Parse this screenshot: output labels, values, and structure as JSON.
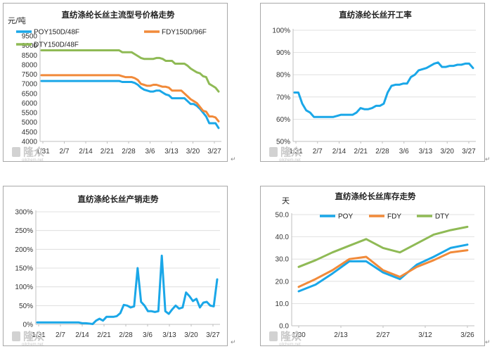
{
  "colors": {
    "poy": "#1aa7e8",
    "fdy": "#f18a3a",
    "dty": "#8fba55",
    "grid": "#d9d9d9",
    "axis": "#bfbfbf"
  },
  "watermark": {
    "brand": "隆众",
    "site": "oilchem.net",
    "icon": "longzhong-logo-icon"
  },
  "cursor_mark": "↵",
  "chart_data": [
    {
      "id": "price",
      "type": "line",
      "title": "直纺涤纶长丝主流型号价格走势",
      "ylabel": "元/吨",
      "ylim": [
        4000,
        9500
      ],
      "yticks": [
        "4000",
        "4500",
        "5000",
        "5500",
        "6000",
        "6500",
        "7000",
        "7500",
        "8000",
        "8500",
        "9000",
        "9500"
      ],
      "ytick_values": [
        4000,
        4500,
        5000,
        5500,
        6000,
        6500,
        7000,
        7500,
        8000,
        8500,
        9000,
        9500
      ],
      "xticks": [
        "1/31",
        "2/7",
        "2/14",
        "2/21",
        "2/28",
        "3/6",
        "3/13",
        "3/20",
        "3/27"
      ],
      "legend_position": "top-left",
      "series": [
        {
          "name": "POY150D/48F",
          "color_key": "poy",
          "values": [
            7150,
            7150,
            7150,
            7150,
            7150,
            7150,
            7150,
            7150,
            7150,
            7150,
            7150,
            7150,
            7150,
            7150,
            7150,
            7150,
            7150,
            7150,
            7150,
            7150,
            7150,
            7150,
            7150,
            7150,
            7150,
            7150,
            7100,
            7100,
            7100,
            7100,
            7050,
            6950,
            6800,
            6700,
            6650,
            6600,
            6600,
            6650,
            6650,
            6550,
            6450,
            6400,
            6250,
            6250,
            6250,
            6250,
            6250,
            6100,
            5950,
            5950,
            5850,
            5700,
            5500,
            5300,
            4950,
            4950,
            4950,
            4700
          ]
        },
        {
          "name": "FDY150D/96F",
          "color_key": "fdy",
          "values": [
            7450,
            7450,
            7450,
            7450,
            7450,
            7450,
            7450,
            7450,
            7450,
            7450,
            7450,
            7450,
            7450,
            7450,
            7450,
            7450,
            7450,
            7450,
            7450,
            7450,
            7450,
            7450,
            7450,
            7450,
            7450,
            7450,
            7400,
            7350,
            7350,
            7350,
            7300,
            7200,
            7000,
            6950,
            6900,
            6900,
            6950,
            6950,
            6900,
            6850,
            6850,
            6800,
            6650,
            6650,
            6650,
            6650,
            6500,
            6350,
            6200,
            6100,
            6000,
            5800,
            5600,
            5550,
            5300,
            5300,
            5250,
            5050
          ]
        },
        {
          "name": "DTY150D/48F",
          "color_key": "dty",
          "values": [
            8750,
            8750,
            8750,
            8750,
            8750,
            8750,
            8750,
            8750,
            8750,
            8750,
            8750,
            8750,
            8750,
            8750,
            8750,
            8750,
            8750,
            8750,
            8750,
            8750,
            8750,
            8750,
            8750,
            8750,
            8750,
            8750,
            8650,
            8650,
            8650,
            8650,
            8550,
            8450,
            8350,
            8300,
            8300,
            8300,
            8300,
            8350,
            8350,
            8300,
            8200,
            8200,
            8200,
            8050,
            8050,
            8050,
            8050,
            7950,
            7800,
            7700,
            7600,
            7550,
            7400,
            7350,
            7000,
            6900,
            6800,
            6600
          ]
        }
      ]
    },
    {
      "id": "utilization",
      "type": "line",
      "title": "直纺涤纶长丝开工率",
      "ylim": [
        50,
        100
      ],
      "yticks": [
        "50%",
        "60%",
        "70%",
        "80%",
        "90%",
        "100%"
      ],
      "ytick_values": [
        50,
        60,
        70,
        80,
        90,
        100
      ],
      "xticks": [
        "1/31",
        "2/7",
        "2/14",
        "2/21",
        "2/28",
        "3/6",
        "3/13",
        "3/20",
        "3/27"
      ],
      "series": [
        {
          "name": "",
          "color_key": "poy",
          "values": [
            72,
            72,
            67,
            64,
            63,
            61,
            61,
            61,
            61,
            61,
            61,
            61.5,
            62,
            62,
            62,
            62,
            63,
            65,
            64.5,
            64.5,
            65,
            66,
            66,
            67,
            72,
            75,
            75.5,
            75.5,
            76,
            76,
            79,
            80,
            82,
            82.5,
            83,
            84,
            85,
            85.5,
            83.5,
            83.5,
            84,
            84,
            84.5,
            84.5,
            85,
            85,
            83
          ]
        }
      ]
    },
    {
      "id": "sales",
      "type": "line",
      "title": "直纺涤纶长丝产销走势",
      "ylim": [
        0,
        300
      ],
      "yticks": [
        "0%",
        "50%",
        "100%",
        "150%",
        "200%",
        "250%",
        "300%"
      ],
      "ytick_values": [
        0,
        50,
        100,
        150,
        200,
        250,
        300
      ],
      "xticks": [
        "1/31",
        "2/7",
        "2/14",
        "2/21",
        "2/28",
        "3/6",
        "3/13",
        "3/20",
        "3/27"
      ],
      "series": [
        {
          "name": "",
          "color_key": "poy",
          "values": [
            5,
            5,
            5,
            5,
            5,
            5,
            5,
            5,
            5,
            5,
            5,
            5,
            5,
            3,
            3,
            2,
            1,
            10,
            15,
            10,
            20,
            20,
            20,
            22,
            30,
            52,
            50,
            45,
            48,
            150,
            60,
            50,
            35,
            35,
            33,
            35,
            183,
            35,
            28,
            40,
            50,
            42,
            45,
            85,
            75,
            62,
            68,
            45,
            58,
            60,
            50,
            48,
            120
          ]
        }
      ]
    },
    {
      "id": "inventory",
      "type": "line",
      "title": "直纺涤纶长丝库存走势",
      "ylabel": "天",
      "ylim": [
        0,
        50
      ],
      "yticks": [
        "0.0",
        "10.0",
        "20.0",
        "30.0",
        "40.0",
        "50.0"
      ],
      "ytick_values": [
        0,
        10,
        20,
        30,
        40,
        50
      ],
      "xticks": [
        "1/30",
        "2/13",
        "2/27",
        "3/12",
        "3/26"
      ],
      "legend_position": "top",
      "series": [
        {
          "name": "POY",
          "color_key": "poy",
          "values": [
            15.5,
            18.5,
            23.5,
            29,
            29,
            24,
            21,
            27.5,
            31,
            35,
            36.5
          ]
        },
        {
          "name": "FDY",
          "color_key": "fdy",
          "values": [
            17.5,
            21,
            25,
            30,
            31,
            25,
            22,
            26.5,
            29.5,
            33,
            34
          ]
        },
        {
          "name": "DTY",
          "color_key": "dty",
          "values": [
            26.5,
            29.5,
            33,
            36,
            39,
            35,
            33,
            37,
            41,
            43,
            44.5
          ]
        }
      ]
    }
  ]
}
